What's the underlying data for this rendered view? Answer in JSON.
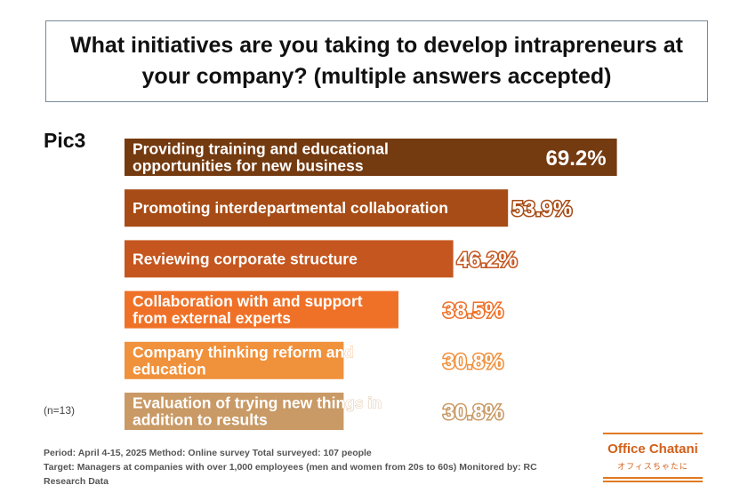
{
  "title": "What initiatives are you taking to develop intrapreneurs at your company? (multiple answers accepted)",
  "pic_label": "Pic3",
  "sample_note": "(n=13)",
  "footer": {
    "line1": "Period: April 4-15, 2025 Method: Online survey Total surveyed: 107 people",
    "line2": "Target: Managers at companies with over 1,000 employees (men and women from 20s to 60s) Monitored by: RC",
    "line3": "Research Data"
  },
  "logo": {
    "name": "Office Chatani",
    "kana": "オフィスちゃたに"
  },
  "chart_data": {
    "type": "bar",
    "orientation": "horizontal",
    "categories": [
      [
        "Providing training and educational",
        "opportunities for new business"
      ],
      [
        "Promoting interdepartmental collaboration"
      ],
      [
        "Reviewing corporate structure"
      ],
      [
        "Collaboration with and support",
        "from external experts"
      ],
      [
        "Company thinking reform and",
        "education"
      ],
      [
        "Evaluation of trying new things in",
        "addition to results"
      ]
    ],
    "values": [
      69.2,
      53.9,
      46.2,
      38.5,
      30.8,
      30.8
    ],
    "value_labels": [
      "69.2%",
      "53.9%",
      "46.2%",
      "38.5%",
      "30.8%",
      "30.8%"
    ],
    "colors": [
      "#743a10",
      "#a74c16",
      "#c5561f",
      "#ef7127",
      "#f0913c",
      "#c99a66"
    ],
    "xlim": [
      0,
      100
    ],
    "grid": false,
    "legend": "none"
  }
}
